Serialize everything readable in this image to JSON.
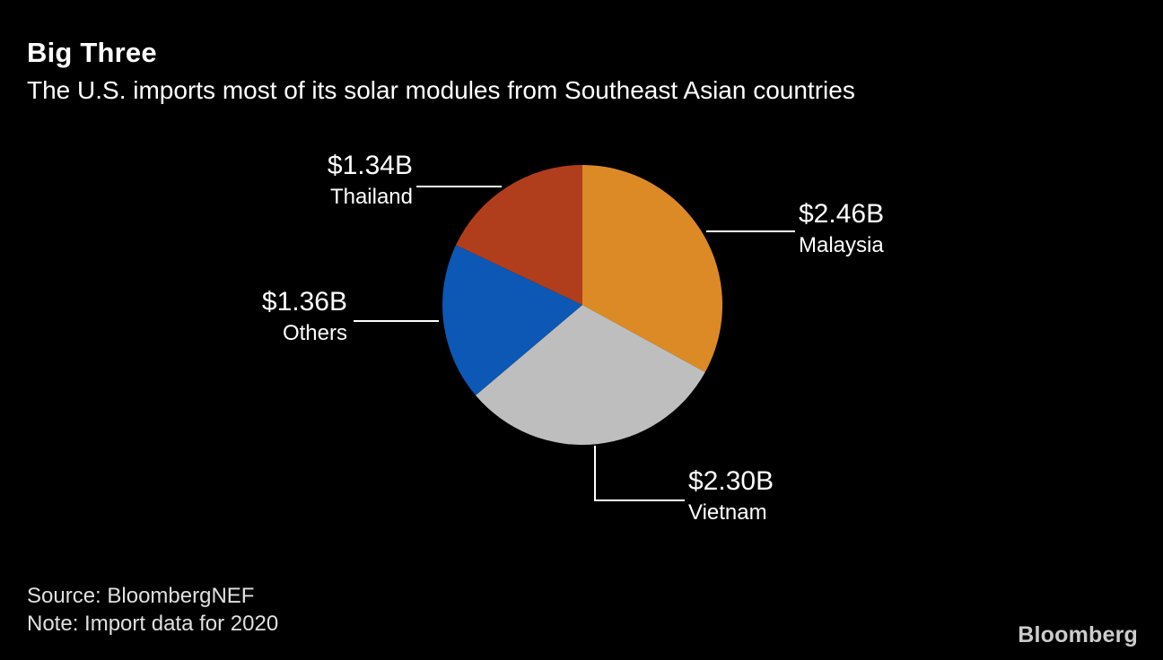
{
  "header": {
    "title": "Big Three",
    "subtitle": "The U.S. imports most of its solar modules from Southeast Asian countries"
  },
  "chart_data": {
    "type": "pie",
    "title": "Big Three",
    "subtitle": "The U.S. imports most of its solar modules from Southeast Asian countries",
    "unit": "USD billions",
    "start_angle_deg": 0,
    "direction": "clockwise",
    "total": 7.46,
    "legend_position": "none",
    "labels_shown_as": "callouts-with-leader-lines",
    "slices": [
      {
        "label": "Malaysia",
        "value": 2.46,
        "value_label": "$2.46B",
        "color": "#DC8A25"
      },
      {
        "label": "Vietnam",
        "value": 2.3,
        "value_label": "$2.30B",
        "color": "#BEBEBE"
      },
      {
        "label": "Others",
        "value": 1.36,
        "value_label": "$1.36B",
        "color": "#0D57B5"
      },
      {
        "label": "Thailand",
        "value": 1.34,
        "value_label": "$1.34B",
        "color": "#B03E1D"
      }
    ]
  },
  "footer": {
    "source": "Source: BloombergNEF",
    "note": "Note: Import data for 2020",
    "logo": "Bloomberg"
  },
  "colors": {
    "background": "#000000",
    "title_text": "#FFFFFF",
    "label_text": "#FFFFFF",
    "footer_text": "#E0E0E0",
    "logo_text": "#CCCCCC",
    "leader_line": "#FFFFFF"
  }
}
